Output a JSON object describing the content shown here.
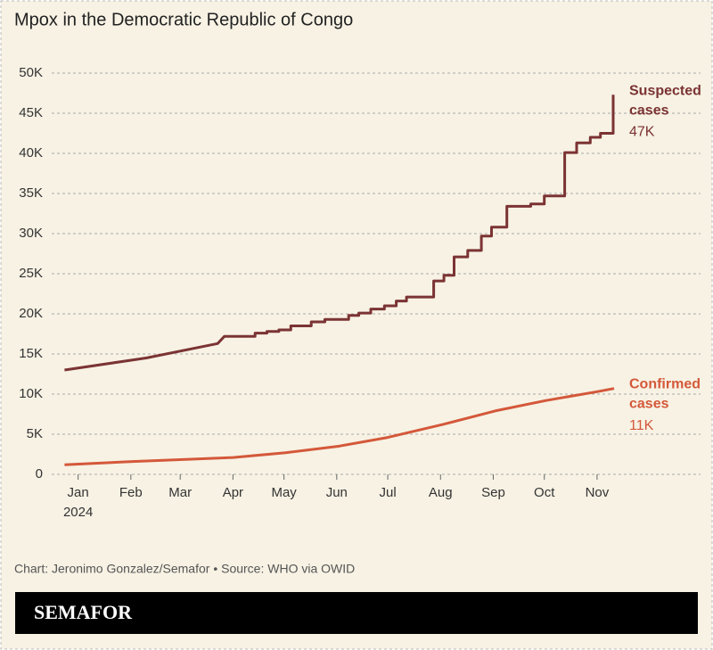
{
  "chart_data": {
    "type": "line",
    "title": "Mpox in the Democratic Republic of Congo",
    "source": "Chart: Jeronimo Gonzalez/Semafor • Source: WHO via OWID",
    "brand": "SEMAFOR",
    "x_year_label": "2024",
    "xlim": [
      0,
      330
    ],
    "xticks": [
      {
        "value": 15,
        "label": "Jan"
      },
      {
        "value": 46,
        "label": "Feb"
      },
      {
        "value": 75,
        "label": "Mar"
      },
      {
        "value": 106,
        "label": "Apr"
      },
      {
        "value": 136,
        "label": "May"
      },
      {
        "value": 167,
        "label": "Jun"
      },
      {
        "value": 197,
        "label": "Jul"
      },
      {
        "value": 228,
        "label": "Aug"
      },
      {
        "value": 259,
        "label": "Sep"
      },
      {
        "value": 289,
        "label": "Oct"
      },
      {
        "value": 320,
        "label": "Nov"
      }
    ],
    "ylim": [
      0,
      50000
    ],
    "yticks": [
      0,
      {
        "value": 5000,
        "label": "5K"
      },
      {
        "value": 10000,
        "label": "10K"
      },
      {
        "value": 15000,
        "label": "15K"
      },
      {
        "value": 20000,
        "label": "20K"
      },
      {
        "value": 25000,
        "label": "25K"
      },
      {
        "value": 30000,
        "label": "30K"
      },
      {
        "value": 35000,
        "label": "35K"
      },
      {
        "value": 40000,
        "label": "40K"
      },
      {
        "value": 45000,
        "label": "45K"
      },
      {
        "value": 50000,
        "label": "50K"
      }
    ],
    "grid": true,
    "series": [
      {
        "name": "Suspected cases",
        "color": "#7b3333",
        "end_label": "47K",
        "x": [
          7,
          55,
          97,
          101,
          119,
          119,
          126,
          126,
          133,
          133,
          140,
          140,
          152,
          152,
          160,
          160,
          174,
          174,
          180,
          180,
          187,
          187,
          195,
          195,
          202,
          202,
          208,
          208,
          224,
          224,
          230,
          230,
          236,
          236,
          244,
          244,
          252,
          252,
          258,
          258,
          267,
          267,
          281,
          281,
          289,
          289,
          301,
          301,
          308,
          308,
          316,
          316,
          322,
          322,
          329.5,
          329.5
        ],
        "values": [
          13000,
          14500,
          16300,
          17200,
          17200,
          17600,
          17600,
          17800,
          17800,
          18000,
          18000,
          18500,
          18500,
          19000,
          19000,
          19300,
          19300,
          19800,
          19800,
          20100,
          20100,
          20600,
          20600,
          21000,
          21000,
          21600,
          21600,
          22100,
          22100,
          24100,
          24100,
          24800,
          24800,
          27100,
          27100,
          27900,
          27900,
          29700,
          29700,
          30800,
          30800,
          33400,
          33400,
          33700,
          33700,
          34700,
          34700,
          40100,
          40100,
          41300,
          41300,
          42000,
          42000,
          42500,
          42500,
          47300
        ]
      },
      {
        "name": "Confirmed cases",
        "color": "#d4583a",
        "end_label": "11K",
        "x": [
          7,
          47,
          106,
          137,
          168,
          197,
          229,
          260,
          290,
          320,
          330
        ],
        "values": [
          1200,
          1600,
          2100,
          2700,
          3500,
          4600,
          6200,
          7900,
          9200,
          10300,
          10700
        ]
      }
    ]
  }
}
